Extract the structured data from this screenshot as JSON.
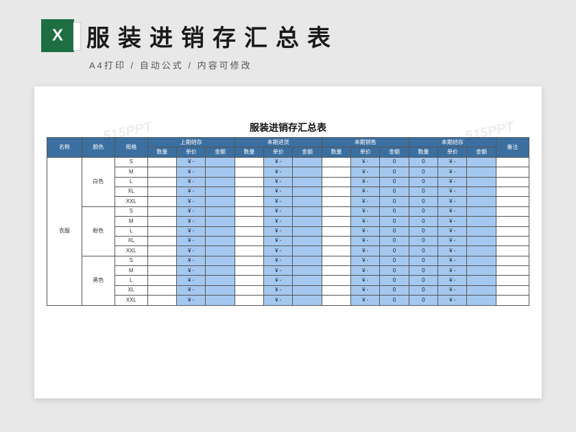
{
  "header": {
    "main_title": "服装进销存汇总表",
    "subtitle": "A4打印 / 自动公式 / 内容可修改"
  },
  "watermark": "515PPT",
  "sheet": {
    "title": "服装进销存汇总表",
    "colors": {
      "header_bg": "#3b6fa0",
      "blue_cell": "#a4c8f0",
      "border": "#555555",
      "text_light": "#ffffff",
      "text_dark": "#222222"
    },
    "top_headers": {
      "name": "名称",
      "color": "颜色",
      "size": "规格",
      "prev_balance": "上期结存",
      "curr_in": "本期进货",
      "curr_out": "本期销售",
      "curr_balance": "本期结存",
      "remark": "备注"
    },
    "sub_headers": {
      "qty": "数量",
      "price": "单价",
      "amount": "金额"
    },
    "product_name": "衣服",
    "color_groups": [
      {
        "color": "白色",
        "sizes": [
          "S",
          "M",
          "L",
          "XL",
          "XXL"
        ]
      },
      {
        "color": "粉色",
        "sizes": [
          "S",
          "M",
          "L",
          "XL",
          "XXL"
        ]
      },
      {
        "color": "黑色",
        "sizes": [
          "S",
          "M",
          "L",
          "XL",
          "XXL"
        ]
      }
    ],
    "cell_values": {
      "yen_dash": "¥    -",
      "zero": "0",
      "blank": ""
    }
  }
}
